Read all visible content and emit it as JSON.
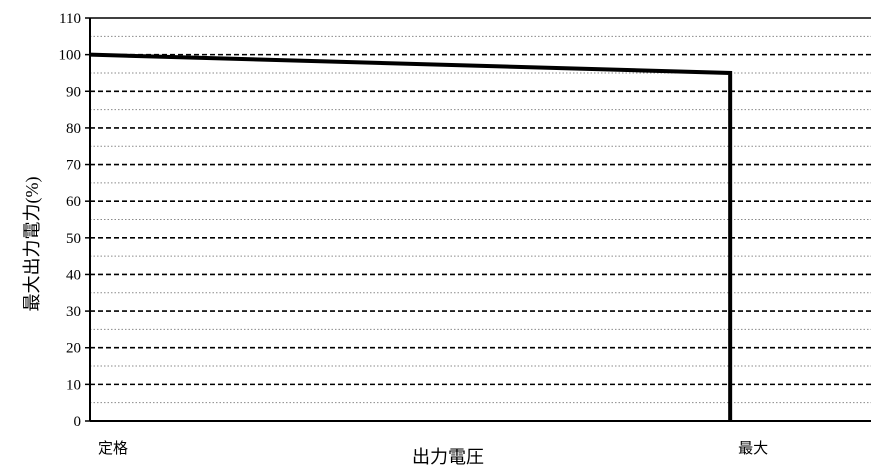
{
  "chart_data": {
    "type": "line",
    "title": "",
    "xlabel": "出力電圧",
    "ylabel": "最大出力電力(%)",
    "ylim": [
      0,
      110
    ],
    "y_major_step": 10,
    "y_minor_step": 5,
    "y_ticks": [
      "0",
      "10",
      "20",
      "30",
      "40",
      "50",
      "60",
      "70",
      "80",
      "90",
      "100",
      "110"
    ],
    "x_tick_labels": [
      {
        "label": "定格",
        "x": 0
      },
      {
        "label": "最大",
        "x": 1
      }
    ],
    "xlim": [
      0,
      1.22
    ],
    "grid": {
      "major": "dashed",
      "minor": "dotted"
    },
    "legend": "none",
    "series": [
      {
        "values": [
          {
            "x": 0,
            "y": 100
          },
          {
            "x": 1,
            "y": 95
          },
          {
            "x": 1,
            "y": 0
          }
        ],
        "color": "#000000"
      }
    ]
  }
}
